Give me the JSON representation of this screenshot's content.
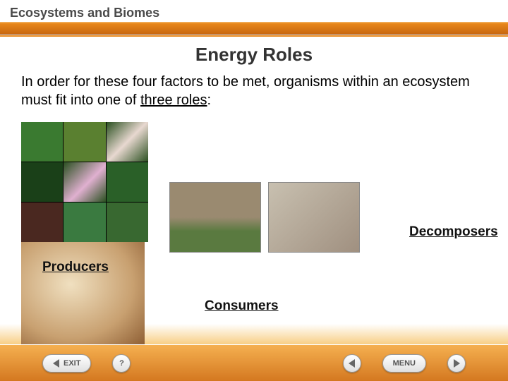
{
  "header": {
    "topic": "Ecosystems and Biomes"
  },
  "page": {
    "title": "Energy Roles",
    "intro_pre": "In order for these four factors to be met, organisms within an ecosystem must fit into one of ",
    "intro_underlined": "three roles",
    "intro_post": ":"
  },
  "labels": {
    "producers": "Producers",
    "consumers": "Consumers",
    "decomposers": "Decomposers"
  },
  "footer": {
    "exit": "EXIT",
    "help": "?",
    "menu": "MENU"
  },
  "colors": {
    "accent": "#d47820",
    "bar_top": "#e8871a",
    "bar_bottom": "#c96810"
  }
}
